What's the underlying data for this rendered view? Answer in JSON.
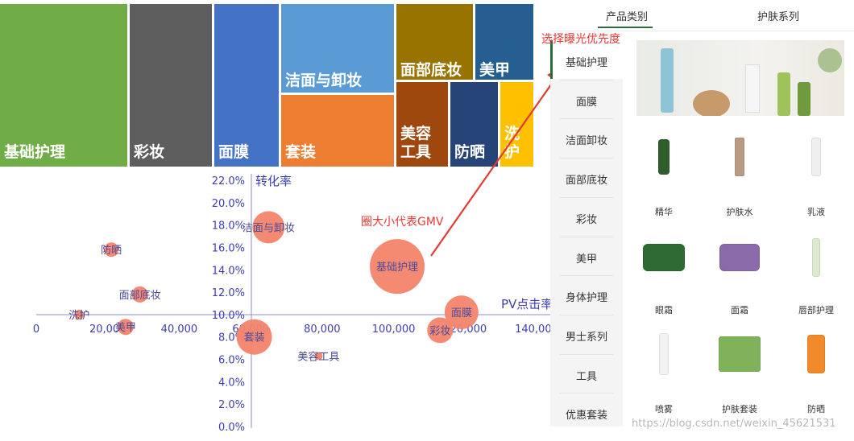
{
  "treemap": {
    "cells": [
      {
        "label": "基础护理",
        "color": "#70ad47"
      },
      {
        "label": "彩妆",
        "color": "#5e5e5e"
      },
      {
        "label": "面膜",
        "color": "#4472c4"
      },
      {
        "label": "洁面与卸妆",
        "color": "#5b9bd5"
      },
      {
        "label": "套装",
        "color": "#ed7d31"
      },
      {
        "label": "面部底妆",
        "color": "#997300"
      },
      {
        "label": "美甲",
        "color": "#255e91"
      },
      {
        "label": "美容工具",
        "color": "#9e480e"
      },
      {
        "label": "防晒",
        "color": "#264478"
      },
      {
        "label": "洗护",
        "color": "#ffc000"
      }
    ]
  },
  "chart_data": {
    "type": "scatter",
    "title": "",
    "xlabel": "PV点击率",
    "ylabel": "转化率",
    "xlim": [
      0,
      140000
    ],
    "ylim": [
      0,
      22
    ],
    "x_ticks": [
      "0",
      "20,000",
      "40,000",
      "60,000",
      "80,000",
      "100,000",
      "120,000",
      "140,000"
    ],
    "y_ticks": [
      "0.0%",
      "2.0%",
      "4.0%",
      "6.0%",
      "8.0%",
      "10.0%",
      "12.0%",
      "14.0%",
      "16.0%",
      "18.0%",
      "20.0%",
      "22.0%"
    ],
    "bubble_color": "#f4846b",
    "points": [
      {
        "label": "洁面与卸妆",
        "x": 65000,
        "y": 17.8,
        "size": 20
      },
      {
        "label": "防晒",
        "x": 21000,
        "y": 15.8,
        "size": 9
      },
      {
        "label": "基础护理",
        "x": 101000,
        "y": 14.3,
        "size": 34
      },
      {
        "label": "面部底妆",
        "x": 29000,
        "y": 11.8,
        "size": 10
      },
      {
        "label": "面膜",
        "x": 119000,
        "y": 10.2,
        "size": 21
      },
      {
        "label": "洗护",
        "x": 12000,
        "y": 10.0,
        "size": 6
      },
      {
        "label": "美甲",
        "x": 25000,
        "y": 8.9,
        "size": 10
      },
      {
        "label": "彩妆",
        "x": 113000,
        "y": 8.6,
        "size": 16
      },
      {
        "label": "套装",
        "x": 61000,
        "y": 8.0,
        "size": 22
      },
      {
        "label": "美容工具",
        "x": 79000,
        "y": 6.3,
        "size": 5
      }
    ]
  },
  "annotations": {
    "bubble_note": "圈大小代表GMV",
    "priority_note": "选择曝光优先度"
  },
  "app": {
    "tabs": [
      "产品类别",
      "护肤系列"
    ],
    "categories": [
      "基础护理",
      "面膜",
      "洁面卸妆",
      "面部底妆",
      "彩妆",
      "美甲",
      "身体护理",
      "男士系列",
      "工具",
      "优惠套装"
    ],
    "products": [
      "精华",
      "护肤水",
      "乳液",
      "眼霜",
      "面霜",
      "唇部护理",
      "喷雾",
      "护肤套装",
      "防晒"
    ]
  },
  "watermark": "https://blog.csdn.net/weixin_45621531"
}
